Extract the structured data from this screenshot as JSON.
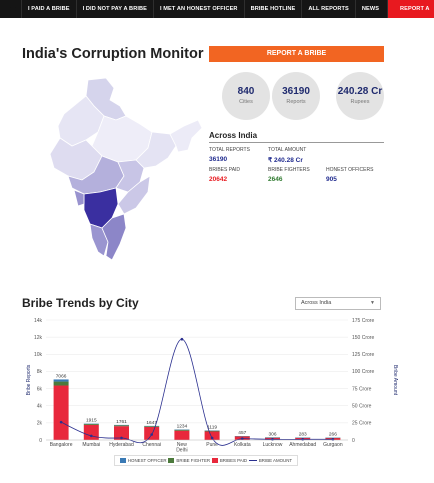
{
  "nav": {
    "items": [
      "I PAID A BRIBE",
      "I DID NOT PAY A BRIBE",
      "I MET AN HONEST OFFICER",
      "BRIBE HOTLINE",
      "ALL REPORTS",
      "NEWS"
    ],
    "report": "REPORT A"
  },
  "header": {
    "title": "India's Corruption Monitor",
    "report_button": "REPORT A BRIBE"
  },
  "circles": [
    {
      "value": "840",
      "label": "Cities"
    },
    {
      "value": "36190",
      "label": "Reports"
    },
    {
      "value": "240.28 Cr",
      "label": "Rupees"
    }
  ],
  "across": {
    "title": "Across India",
    "total_reports_label": "TOTAL REPORTS",
    "total_reports": "36190",
    "total_amount_label": "TOTAL AMOUNT",
    "total_amount": "₹ 240.28 Cr",
    "bribes_paid_label": "BRIBES PAID",
    "bribes_paid": "20642",
    "bribe_fighters_label": "BRIBE FIGHTERS",
    "bribe_fighters": "2646",
    "honest_officers_label": "HONEST OFFICERS",
    "honest_officers": "905"
  },
  "trends": {
    "title": "Bribe Trends by City",
    "filter": "Across India"
  },
  "colors": {
    "paid": "#e8283c",
    "fighter": "#4c7a3c",
    "honest": "#3a7ab5",
    "amount": "#2a2f8f",
    "nav_red": "#e8191f",
    "orange": "#f26522"
  },
  "chart_data": {
    "type": "bar",
    "categories": [
      "Bangalore",
      "Mumbai",
      "Hyderabad",
      "Chennai",
      "New Delhi",
      "Pune",
      "Kolkata",
      "Lucknow",
      "Ahmedabad",
      "Gurgaon"
    ],
    "totals": [
      7066,
      1915,
      1761,
      1647,
      1234,
      1119,
      457,
      306,
      283,
      266
    ],
    "series": [
      {
        "name": "HONEST OFFICER",
        "values": [
          250,
          40,
          40,
          35,
          40,
          35,
          15,
          10,
          10,
          8
        ]
      },
      {
        "name": "BRIBE FIGHTER",
        "values": [
          460,
          110,
          110,
          90,
          110,
          90,
          32,
          20,
          20,
          18
        ]
      },
      {
        "name": "BRIBES PAID",
        "values": [
          6356,
          1765,
          1611,
          1522,
          1084,
          994,
          410,
          276,
          253,
          240
        ]
      },
      {
        "name": "BRIBE AMOUNT",
        "axis": "right",
        "values": [
          26,
          6,
          3,
          8,
          147,
          3,
          2,
          1,
          1,
          1
        ]
      }
    ],
    "ylabel": "Bribe Reports",
    "y2label": "Bribe Amount",
    "ylim": [
      0,
      14000
    ],
    "y2lim": [
      0,
      175
    ],
    "yticks": [
      "0",
      "2k",
      "4k",
      "6k",
      "8k",
      "10k",
      "12k",
      "14k"
    ],
    "y2ticks": [
      "0",
      "25 Crore",
      "50 Crore",
      "75 Crore",
      "100 Crore",
      "125 Crore",
      "150 Crore",
      "175 Crore"
    ],
    "legend": [
      "HONEST OFFICER",
      "BRIBE FIGHTER",
      "BRIBES PAID",
      "BRIBE AMOUNT"
    ]
  }
}
